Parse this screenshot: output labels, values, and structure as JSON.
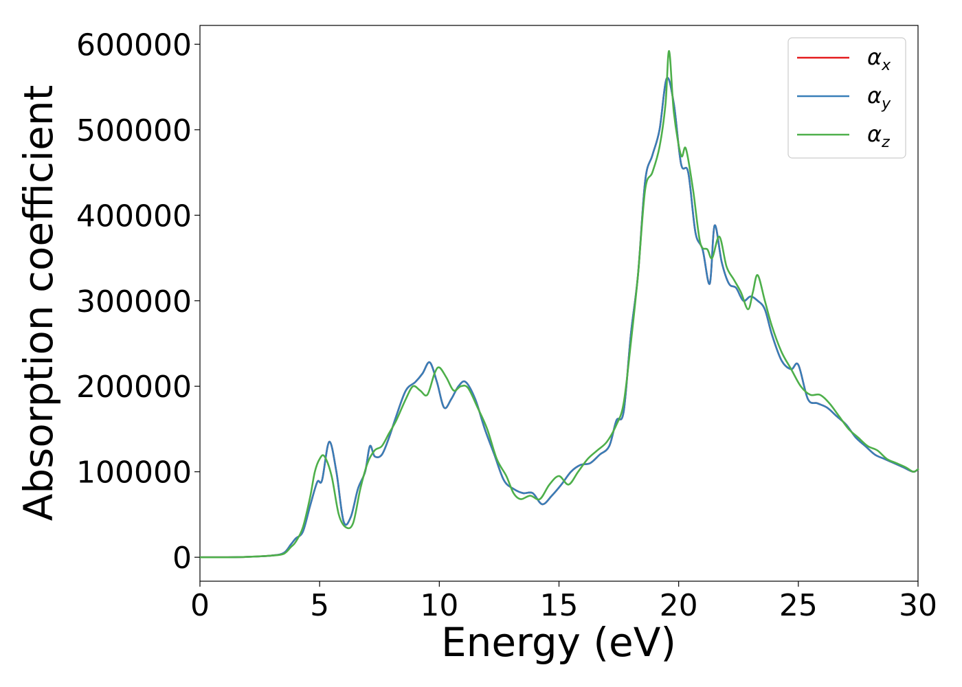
{
  "chart_data": {
    "type": "line",
    "xlabel": "Energy (eV)",
    "ylabel": "Absorption coefficient",
    "xlim": [
      0,
      30
    ],
    "ylim": [
      -28000,
      622000
    ],
    "xticks": [
      0,
      5,
      10,
      15,
      20,
      25,
      30
    ],
    "yticks": [
      0,
      100000,
      200000,
      300000,
      400000,
      500000,
      600000
    ],
    "grid": false,
    "legend_position": "top-right",
    "series": [
      {
        "name": "α_x",
        "symbol": "α",
        "subscript": "x",
        "color": "#e41a1c",
        "x": [
          0,
          1,
          2,
          3,
          3.5,
          3.8,
          4.0,
          4.3,
          4.6,
          4.9,
          5.1,
          5.4,
          5.7,
          6.0,
          6.3,
          6.6,
          6.9,
          7.1,
          7.3,
          7.6,
          7.9,
          8.2,
          8.6,
          9.0,
          9.3,
          9.6,
          9.9,
          10.2,
          10.5,
          10.8,
          11.1,
          11.5,
          11.9,
          12.3,
          12.7,
          13.1,
          13.5,
          13.9,
          14.3,
          14.7,
          15.1,
          15.5,
          15.9,
          16.3,
          16.7,
          17.1,
          17.4,
          17.7,
          18.0,
          18.3,
          18.6,
          18.9,
          19.2,
          19.5,
          19.8,
          20.1,
          20.4,
          20.7,
          21.0,
          21.3,
          21.5,
          21.8,
          22.1,
          22.4,
          22.7,
          23.0,
          23.3,
          23.6,
          23.9,
          24.3,
          24.7,
          25.0,
          25.4,
          25.8,
          26.2,
          26.6,
          27.0,
          27.4,
          27.8,
          28.2,
          28.6,
          29.0,
          29.4,
          29.8,
          30.0
        ],
        "y": [
          0,
          0,
          500,
          2000,
          5000,
          15000,
          22000,
          30000,
          60000,
          88000,
          90000,
          135000,
          100000,
          42000,
          47000,
          80000,
          100000,
          130000,
          118000,
          120000,
          140000,
          165000,
          195000,
          205000,
          215000,
          228000,
          205000,
          175000,
          185000,
          200000,
          205000,
          185000,
          150000,
          120000,
          90000,
          80000,
          75000,
          75000,
          62000,
          72000,
          85000,
          100000,
          108000,
          110000,
          120000,
          130000,
          160000,
          170000,
          260000,
          330000,
          440000,
          470000,
          500000,
          560000,
          530000,
          460000,
          450000,
          380000,
          360000,
          320000,
          388000,
          345000,
          320000,
          315000,
          300000,
          305000,
          300000,
          290000,
          260000,
          230000,
          220000,
          225000,
          185000,
          180000,
          175000,
          165000,
          155000,
          140000,
          130000,
          120000,
          115000,
          110000,
          105000,
          100000,
          103000
        ]
      },
      {
        "name": "α_y",
        "symbol": "α",
        "subscript": "y",
        "color": "#377eb8",
        "x": [
          0,
          1,
          2,
          3,
          3.5,
          3.8,
          4.0,
          4.3,
          4.6,
          4.9,
          5.1,
          5.4,
          5.7,
          6.0,
          6.3,
          6.6,
          6.9,
          7.1,
          7.3,
          7.6,
          7.9,
          8.2,
          8.6,
          9.0,
          9.3,
          9.6,
          9.9,
          10.2,
          10.5,
          10.8,
          11.1,
          11.5,
          11.9,
          12.3,
          12.7,
          13.1,
          13.5,
          13.9,
          14.3,
          14.7,
          15.1,
          15.5,
          15.9,
          16.3,
          16.7,
          17.1,
          17.4,
          17.7,
          18.0,
          18.3,
          18.6,
          18.9,
          19.2,
          19.5,
          19.8,
          20.1,
          20.4,
          20.7,
          21.0,
          21.3,
          21.5,
          21.8,
          22.1,
          22.4,
          22.7,
          23.0,
          23.3,
          23.6,
          23.9,
          24.3,
          24.7,
          25.0,
          25.4,
          25.8,
          26.2,
          26.6,
          27.0,
          27.4,
          27.8,
          28.2,
          28.6,
          29.0,
          29.4,
          29.8,
          30.0
        ],
        "y": [
          0,
          0,
          500,
          2000,
          5000,
          15000,
          22000,
          30000,
          60000,
          88000,
          90000,
          135000,
          100000,
          42000,
          47000,
          80000,
          100000,
          130000,
          118000,
          120000,
          140000,
          165000,
          195000,
          205000,
          215000,
          228000,
          205000,
          175000,
          185000,
          200000,
          205000,
          185000,
          150000,
          120000,
          90000,
          80000,
          75000,
          75000,
          62000,
          72000,
          85000,
          100000,
          108000,
          110000,
          120000,
          130000,
          160000,
          170000,
          260000,
          330000,
          440000,
          470000,
          500000,
          560000,
          530000,
          460000,
          450000,
          380000,
          360000,
          320000,
          388000,
          345000,
          320000,
          315000,
          300000,
          305000,
          300000,
          290000,
          260000,
          230000,
          220000,
          225000,
          185000,
          180000,
          175000,
          165000,
          155000,
          140000,
          130000,
          120000,
          115000,
          110000,
          105000,
          100000,
          103000
        ]
      },
      {
        "name": "α_z",
        "symbol": "α",
        "subscript": "z",
        "color": "#4daf4a",
        "x": [
          0,
          1,
          2,
          3,
          3.5,
          3.8,
          4.0,
          4.3,
          4.6,
          4.8,
          5.0,
          5.2,
          5.5,
          5.8,
          6.1,
          6.4,
          6.7,
          7.0,
          7.3,
          7.6,
          7.9,
          8.2,
          8.6,
          8.9,
          9.2,
          9.5,
          9.8,
          10.0,
          10.3,
          10.6,
          10.9,
          11.2,
          11.6,
          12.0,
          12.4,
          12.8,
          13.1,
          13.4,
          13.8,
          14.2,
          14.6,
          15.0,
          15.4,
          15.8,
          16.2,
          16.6,
          17.0,
          17.4,
          17.7,
          18.0,
          18.3,
          18.6,
          18.9,
          19.2,
          19.45,
          19.6,
          19.8,
          20.1,
          20.3,
          20.6,
          20.9,
          21.2,
          21.4,
          21.7,
          22.0,
          22.3,
          22.6,
          22.9,
          23.1,
          23.3,
          23.6,
          23.9,
          24.3,
          24.7,
          25.1,
          25.5,
          25.9,
          26.3,
          26.7,
          27.1,
          27.5,
          27.9,
          28.3,
          28.7,
          29.1,
          29.5,
          29.8,
          30.0
        ],
        "y": [
          0,
          0,
          500,
          2000,
          4000,
          12000,
          18000,
          35000,
          70000,
          100000,
          115000,
          118000,
          95000,
          50000,
          35000,
          40000,
          80000,
          110000,
          125000,
          130000,
          145000,
          160000,
          185000,
          200000,
          195000,
          190000,
          215000,
          222000,
          210000,
          195000,
          200000,
          198000,
          175000,
          150000,
          115000,
          95000,
          75000,
          68000,
          72000,
          68000,
          85000,
          95000,
          85000,
          100000,
          115000,
          125000,
          135000,
          155000,
          180000,
          250000,
          330000,
          430000,
          450000,
          480000,
          530000,
          592000,
          520000,
          470000,
          478000,
          430000,
          368000,
          360000,
          350000,
          375000,
          340000,
          325000,
          310000,
          290000,
          310000,
          330000,
          300000,
          270000,
          240000,
          220000,
          200000,
          190000,
          190000,
          180000,
          165000,
          150000,
          140000,
          130000,
          125000,
          115000,
          110000,
          105000,
          100000,
          103000
        ]
      }
    ]
  }
}
